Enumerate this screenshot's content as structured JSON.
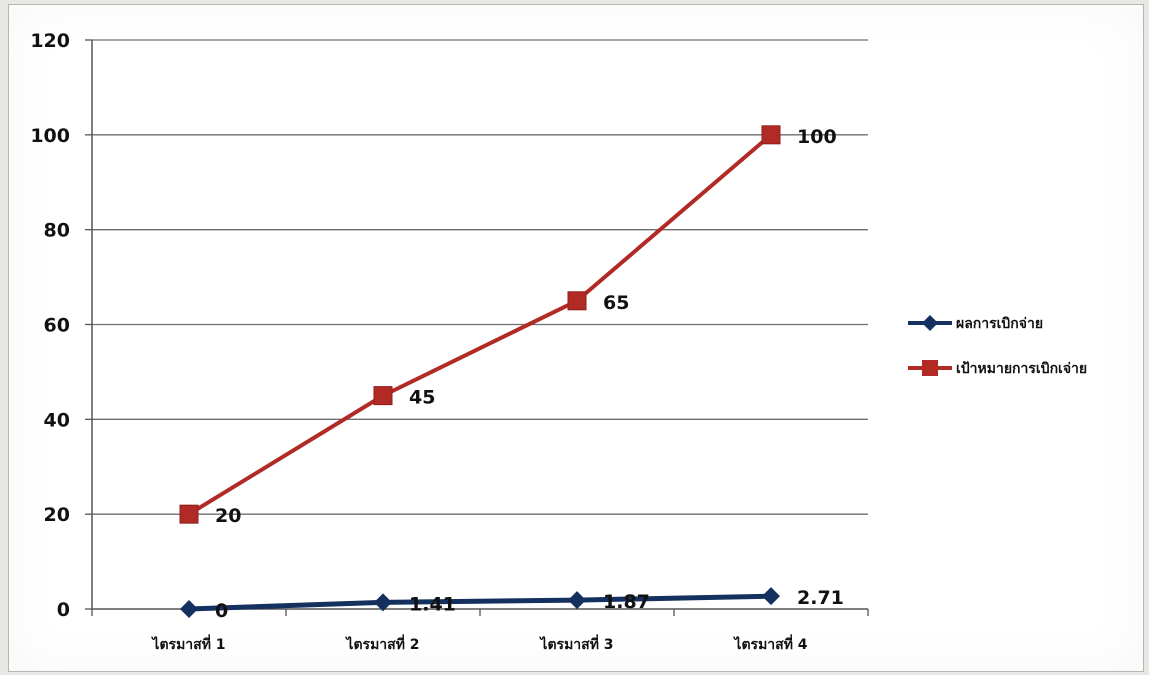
{
  "chart_data": {
    "type": "line",
    "title": "",
    "xlabel": "",
    "ylabel": "",
    "categories": [
      "ไตรมาสที่ 1",
      "ไตรมาสที่ 2",
      "ไตรมาสที่ 3",
      "ไตรมาสที่ 4"
    ],
    "yticks": [
      "0",
      "20",
      "40",
      "60",
      "80",
      "100",
      "120"
    ],
    "ylim": [
      0,
      120
    ],
    "grid": true,
    "legend_position": "right",
    "series": [
      {
        "name": "ผลการเบิกจ่าย",
        "values": [
          0,
          1.41,
          1.87,
          2.71
        ],
        "labels": [
          "0",
          "1.41",
          "1.87",
          "2.71"
        ],
        "color": "#14305e",
        "marker": "diamond"
      },
      {
        "name": "เป้าหมายการเบิกเจ่าย",
        "values": [
          20,
          45,
          65,
          100
        ],
        "labels": [
          "20",
          "45",
          "65",
          "100"
        ],
        "color": "#b22a26",
        "marker": "square"
      }
    ]
  }
}
